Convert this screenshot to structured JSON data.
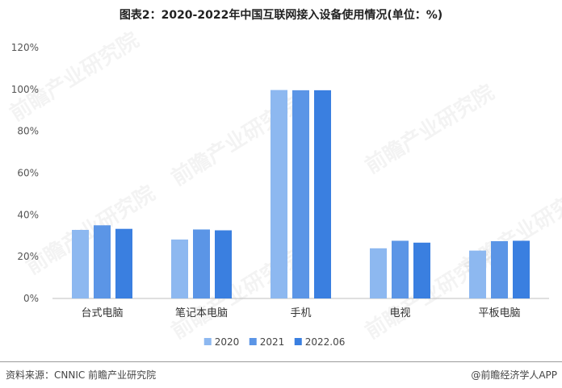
{
  "title": "图表2：2020-2022年中国互联网接入设备使用情况(单位：%)",
  "footer": {
    "source": "资料来源：CNNIC 前瞻产业研究院",
    "credit": "@前瞻经济学人APP"
  },
  "watermark": "前瞻产业研究院",
  "chart_data": {
    "type": "bar",
    "title": "图表2：2020-2022年中国互联网接入设备使用情况(单位：%)",
    "categories": [
      "台式电脑",
      "笔记本电脑",
      "手机",
      "电视",
      "平板电脑"
    ],
    "series": [
      {
        "name": "2020",
        "color": "#8db8f0",
        "values": [
          32.8,
          28.2,
          99.7,
          24.0,
          22.9
        ]
      },
      {
        "name": "2021",
        "color": "#5b95e6",
        "values": [
          35.0,
          33.0,
          99.6,
          27.6,
          27.4
        ]
      },
      {
        "name": "2022.06",
        "color": "#3a7fe0",
        "values": [
          33.3,
          32.6,
          99.6,
          26.7,
          27.6
        ]
      }
    ],
    "y_ticks": [
      "0%",
      "20%",
      "40%",
      "60%",
      "80%",
      "100%",
      "120%"
    ],
    "ylim": [
      0,
      120
    ],
    "grid": false,
    "legend_position": "bottom"
  }
}
